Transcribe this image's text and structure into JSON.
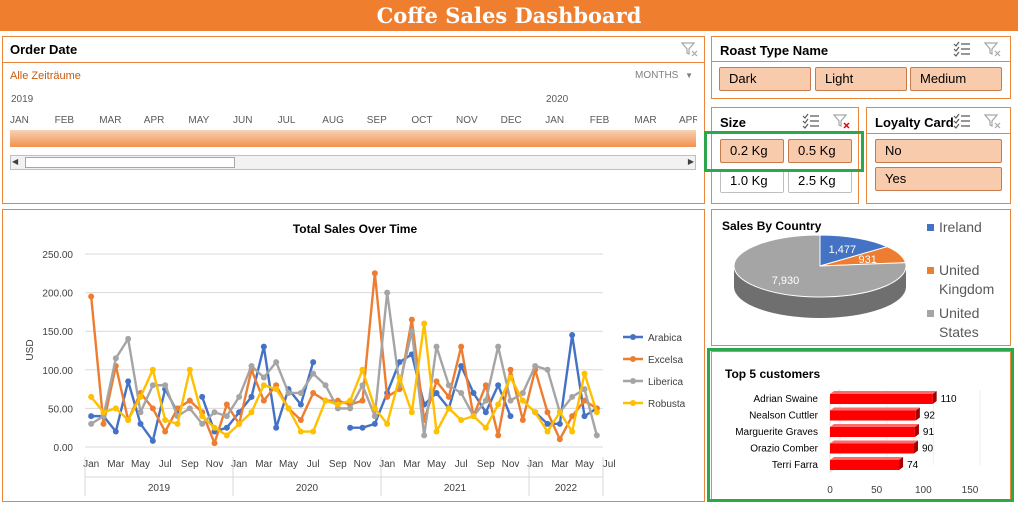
{
  "dashboard": {
    "title": "Coffe Sales Dashboard"
  },
  "order_date": {
    "title": "Order Date",
    "all_periods": "Alle Zeiträume",
    "level": "MONTHS",
    "years": [
      "2019",
      "2020"
    ],
    "months": [
      "JAN",
      "FEB",
      "MAR",
      "APR",
      "MAY",
      "JUN",
      "JUL",
      "AUG",
      "SEP",
      "OCT",
      "NOV",
      "DEC",
      "JAN",
      "FEB",
      "MAR",
      "APR"
    ]
  },
  "roast_type": {
    "title": "Roast Type Name",
    "items": [
      {
        "label": "Dark",
        "selected": true
      },
      {
        "label": "Light",
        "selected": true
      },
      {
        "label": "Medium",
        "selected": true
      }
    ]
  },
  "size": {
    "title": "Size",
    "items": [
      {
        "label": "0.2 Kg",
        "selected": true
      },
      {
        "label": "0.5 Kg",
        "selected": true
      },
      {
        "label": "1.0 Kg",
        "selected": false
      },
      {
        "label": "2.5 Kg",
        "selected": false
      }
    ]
  },
  "loyalty_card": {
    "title": "Loyalty Card",
    "items": [
      {
        "label": "No",
        "selected": true
      },
      {
        "label": "Yes",
        "selected": true
      }
    ]
  },
  "colors": {
    "arabica": "#4472c4",
    "excelsa": "#ed7d31",
    "liberica": "#a5a5a5",
    "robusta": "#ffc000",
    "accent": "#ef7f2e",
    "highlight": "#2ca84a",
    "bar": "#ff0000"
  },
  "chart_data": [
    {
      "type": "line",
      "title": "Total Sales Over Time",
      "ylabel": "USD",
      "ylim": [
        0,
        250
      ],
      "yticks": [
        "0.00",
        "50.00",
        "100.00",
        "150.00",
        "200.00",
        "250.00"
      ],
      "month_labels": [
        "Jan",
        "Mar",
        "May",
        "Jul",
        "Sep",
        "Nov",
        "Jan",
        "Mar",
        "May",
        "Jul",
        "Sep",
        "Nov",
        "Jan",
        "Mar",
        "May",
        "Jul",
        "Sep",
        "Nov",
        "Jan",
        "Mar",
        "May",
        "Jul"
      ],
      "years": [
        "2019",
        "2020",
        "2021",
        "2022"
      ],
      "series": [
        {
          "name": "Arabica",
          "values": [
            40,
            40,
            20,
            85,
            30,
            8,
            75,
            45,
            null,
            65,
            20,
            25,
            45,
            65,
            130,
            25,
            75,
            55,
            110,
            null,
            null,
            25,
            25,
            30,
            70,
            110,
            120,
            55,
            70,
            50,
            105,
            70,
            45,
            80,
            40,
            null,
            45,
            30,
            30,
            145,
            40,
            50
          ]
        },
        {
          "name": "Excelsa",
          "values": [
            195,
            30,
            105,
            35,
            70,
            50,
            20,
            50,
            60,
            45,
            5,
            55,
            30,
            100,
            60,
            80,
            50,
            35,
            70,
            60,
            60,
            55,
            60,
            225,
            65,
            75,
            165,
            35,
            85,
            65,
            130,
            40,
            80,
            15,
            100,
            35,
            100,
            45,
            10,
            40,
            60,
            50
          ]
        },
        {
          "name": "Liberica",
          "values": [
            30,
            40,
            115,
            140,
            45,
            80,
            80,
            40,
            50,
            30,
            45,
            40,
            65,
            105,
            90,
            110,
            70,
            70,
            95,
            80,
            50,
            50,
            80,
            40,
            200,
            80,
            150,
            15,
            130,
            80,
            70,
            40,
            60,
            130,
            60,
            70,
            105,
            100,
            45,
            65,
            75,
            15
          ]
        },
        {
          "name": "Robusta",
          "values": [
            65,
            45,
            50,
            35,
            65,
            100,
            35,
            30,
            100,
            40,
            25,
            15,
            30,
            45,
            80,
            75,
            50,
            20,
            20,
            60,
            55,
            60,
            100,
            50,
            30,
            90,
            45,
            160,
            20,
            50,
            35,
            40,
            25,
            55,
            90,
            60,
            45,
            20,
            45,
            20,
            95,
            45
          ]
        }
      ]
    },
    {
      "type": "pie",
      "title": "Sales By Country",
      "categories": [
        "Ireland",
        "United Kingdom",
        "United States"
      ],
      "values": [
        1477,
        931,
        7930
      ],
      "labels": [
        "1,477",
        "931",
        "7,930"
      ],
      "legend": [
        "Ireland",
        "United Kingdom",
        "United States"
      ]
    },
    {
      "type": "bar",
      "title": "Top 5 customers",
      "categories": [
        "Adrian Swaine",
        "Nealson Cuttler",
        "Marguerite Graves",
        "Orazio Comber",
        "Terri Farra"
      ],
      "values": [
        110,
        92,
        91,
        90,
        74
      ],
      "xticks": [
        "0",
        "50",
        "100",
        "150"
      ],
      "xlim": [
        0,
        150
      ]
    }
  ]
}
